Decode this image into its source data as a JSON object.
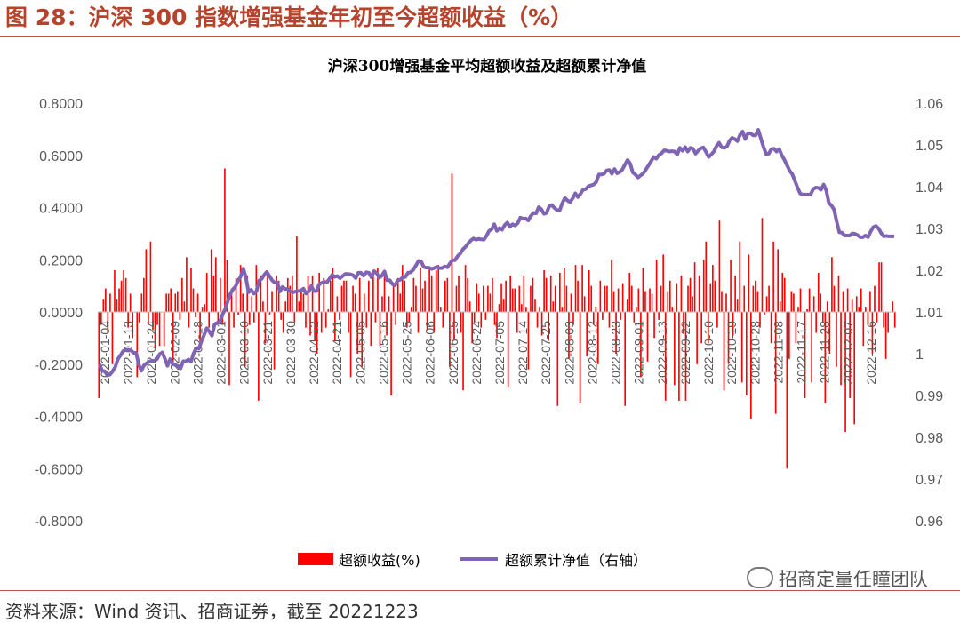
{
  "figure": {
    "title": "图 28：沪深 300 指数增强基金年初至今超额收益（%）",
    "source": "资料来源：Wind 资讯、招商证券，截至 20221223",
    "watermark": "招商定量任瞳团队"
  },
  "colors": {
    "bar": "#ff0000",
    "line": "#7f64b4",
    "rule": "#c0504d",
    "title": "#b8432d"
  },
  "chart_data": {
    "type": "bar",
    "title": "沪深300增强基金平均超额收益及超额累计净值",
    "y_left": {
      "lim": [
        -0.8,
        0.8
      ],
      "ticks": [
        "0.8000",
        "0.6000",
        "0.4000",
        "0.2000",
        "0.0000",
        "-0.2000",
        "-0.4000",
        "-0.6000",
        "-0.8000"
      ]
    },
    "y_right": {
      "lim": [
        0.96,
        1.06
      ],
      "ticks": [
        "1.06",
        "1.05",
        "1.04",
        "1.03",
        "1.02",
        "1.01",
        "1",
        "0.99",
        "0.98",
        "0.97",
        "0.96"
      ]
    },
    "x_tick_labels": [
      "2022-01-04",
      "2022-01-13",
      "2022-01-24",
      "2022-02-09",
      "2022-02-18",
      "2022-03-01",
      "2022-03-10",
      "2022-03-21",
      "2022-03-30",
      "2022-04-12",
      "2022-04-21",
      "2022-05-05",
      "2022-05-16",
      "2022-05-25",
      "2022-06-06",
      "2022-06-15",
      "2022-06-24",
      "2022-07-05",
      "2022-07-14",
      "2022-07-25",
      "2022-08-03",
      "2022-08-12",
      "2022-08-23",
      "2022-09-01",
      "2022-09-13",
      "2022-09-22",
      "2022-10-10",
      "2022-10-19",
      "2022-10-28",
      "2022-11-08",
      "2022-11-17",
      "2022-11-28",
      "2022-12-07",
      "2022-12-16"
    ],
    "legend": [
      {
        "label": "超额收益(%)",
        "kind": "bar"
      },
      {
        "label": "超额累计净值（右轴）",
        "kind": "line"
      }
    ],
    "series": [
      {
        "name": "超额收益(%)",
        "axis": "left",
        "kind": "bar",
        "values": [
          -0.33,
          -0.05,
          0.05,
          0.09,
          -0.08,
          0.07,
          -0.2,
          0.16,
          0.05,
          0.09,
          0.12,
          0.16,
          0.13,
          -0.06,
          0.07,
          -0.1,
          0.0,
          -0.25,
          -0.04,
          0.07,
          0.13,
          0.24,
          -0.05,
          0.27,
          -0.07,
          -0.14,
          -0.05,
          -0.13,
          0.0,
          -0.13,
          0.07,
          0.07,
          0.09,
          -0.2,
          0.07,
          0.08,
          -0.03,
          0.13,
          0.04,
          0.21,
          -0.06,
          0.17,
          0.09,
          -0.02,
          0.07,
          -0.13,
          0.02,
          0.03,
          0.15,
          -0.06,
          0.24,
          0.14,
          0.21,
          -0.04,
          0.13,
          -0.05,
          0.55,
          0.2,
          -0.28,
          0.09,
          -0.06,
          0.13,
          -0.01,
          0.18,
          0.07,
          -0.21,
          0.14,
          -0.05,
          0.06,
          -0.04,
          0.18,
          -0.34,
          0.14,
          0.04,
          -0.12,
          0.15,
          -0.01,
          0.08,
          -0.22,
          0.14,
          0.12,
          -0.03,
          -0.08,
          0.04,
          0.13,
          0.1,
          0.14,
          -0.04,
          0.29,
          0.04,
          0.08,
          0.07,
          -0.06,
          0.14,
          -0.09,
          0.14,
          -0.11,
          -0.16,
          0.15,
          -0.08,
          0.13,
          -0.06,
          0.01,
          0.12,
          0.17,
          -0.11,
          0.06,
          -0.03,
          0.1,
          0.12,
          0.12,
          -0.08,
          -0.25,
          0.1,
          0.07,
          -0.16,
          0.13,
          -0.21,
          0.07,
          -0.06,
          0.12,
          -0.13,
          0.16,
          -0.04,
          0.17,
          -0.13,
          0.06,
          0.14,
          -0.09,
          0.06,
          -0.32,
          0.1,
          -0.05,
          0.13,
          0.07,
          0.18,
          0.12,
          -0.06,
          -0.04,
          0.02,
          0.13,
          0.1,
          -0.08,
          0.17,
          0.09,
          0.12,
          -0.07,
          0.17,
          0.14,
          -0.08,
          0.16,
          0.18,
          0.02,
          -0.06,
          0.12,
          0.13,
          -0.21,
          0.53,
          -0.11,
          0.1,
          0.14,
          -0.08,
          -0.3,
          0.18,
          0.13,
          0.04,
          -0.12,
          -0.04,
          0.11,
          0.07,
          -0.06,
          0.1,
          -0.03,
          0.1,
          0.07,
          0.13,
          -0.05,
          -0.1,
          0.03,
          0.11,
          0.05,
          0.12,
          -0.29,
          0.14,
          0.09,
          0.09,
          -0.08,
          0.1,
          0.03,
          0.14,
          0.02,
          -0.22,
          0.1,
          0.13,
          0.05,
          -0.06,
          0.02,
          -0.09,
          0.16,
          0.13,
          -0.11,
          0.14,
          0.04,
          0.1,
          -0.36,
          0.15,
          0.02,
          0.17,
          0.1,
          -0.18,
          0.07,
          -0.05,
          0.18,
          0.12,
          -0.35,
          0.18,
          0.06,
          -0.17,
          0.16,
          0.1,
          -0.05,
          0.02,
          -0.2,
          0.12,
          -0.03,
          0.1,
          0.1,
          -0.06,
          0.2,
          0.08,
          -0.16,
          0.09,
          -0.03,
          0.11,
          -0.36,
          0.05,
          0.15,
          0.1,
          -0.04,
          0.02,
          0.09,
          -0.25,
          0.17,
          0.08,
          -0.19,
          0.09,
          0.07,
          -0.1,
          0.2,
          -0.03,
          0.1,
          0.22,
          -0.34,
          0.08,
          0.12,
          0.02,
          -0.28,
          0.11,
          -0.34,
          0.14,
          -0.08,
          -0.34,
          0.1,
          0.13,
          0.06,
          0.19,
          -0.2,
          0.14,
          -0.12,
          0.2,
          0.27,
          -0.12,
          0.11,
          0.18,
          0.12,
          -0.06,
          0.35,
          0.08,
          -0.3,
          0.07,
          -0.2,
          0.2,
          -0.09,
          0.14,
          0.05,
          0.27,
          -0.27,
          0.1,
          -0.32,
          0.22,
          -0.41,
          0.1,
          0.12,
          0.08,
          -0.06,
          0.36,
          -0.01,
          0.06,
          0.1,
          -0.12,
          0.27,
          -0.39,
          0.24,
          0.04,
          0.15,
          0.13,
          -0.6,
          -0.18,
          0.08,
          0.07,
          -0.12,
          0.02,
          0.09,
          0.0,
          -0.33,
          0.01,
          0.09,
          -0.27,
          0.06,
          -0.08,
          0.15,
          0.07,
          -0.04,
          -0.35,
          0.04,
          -0.16,
          0.21,
          0.1,
          -0.21,
          0.14,
          -0.28,
          0.08,
          -0.46,
          0.09,
          -0.33,
          0.05,
          -0.43,
          0.06,
          0.02,
          0.09,
          -0.13,
          0.02,
          -0.05,
          0.08,
          -0.16,
          0.1,
          -0.04,
          0.19,
          0.19,
          -0.06,
          -0.18,
          -0.08,
          0.0,
          0.04,
          -0.06
        ]
      },
      {
        "name": "超额累计净值（右轴）",
        "axis": "right",
        "kind": "line",
        "values": [
          0.9975,
          0.9959,
          0.9958,
          0.9948,
          0.995,
          0.9958,
          0.9968,
          0.9987,
          0.9996,
          1.0006,
          1.0009,
          1.0009,
          1.0008,
          1.0002,
          1.0002,
          0.9974,
          0.9959,
          0.9972,
          0.9977,
          0.9981,
          0.9983,
          0.9983,
          0.9987,
          0.9999,
          1.0003,
          0.9988,
          0.9971,
          0.9987,
          0.9975,
          0.9973,
          0.997,
          0.9965,
          0.9982,
          0.9982,
          0.9986,
          0.9981,
          1.0001,
          1.0013,
          1.0012,
          1.003,
          1.0045,
          1.0061,
          1.0053,
          1.0043,
          1.007,
          1.0074,
          1.0076,
          1.0093,
          1.0106,
          1.0125,
          1.0143,
          1.0154,
          1.0161,
          1.0175,
          1.0185,
          1.0204,
          1.0182,
          1.0147,
          1.0153,
          1.0144,
          1.0149,
          1.0175,
          1.0179,
          1.0189,
          1.0196,
          1.0186,
          1.0176,
          1.017,
          1.017,
          1.0149,
          1.016,
          1.0155,
          1.0155,
          1.0149,
          1.0147,
          1.0149,
          1.015,
          1.0151,
          1.0156,
          1.0144,
          1.0149,
          1.0162,
          1.015,
          1.015,
          1.0166,
          1.017,
          1.0172,
          1.0171,
          1.018,
          1.0189,
          1.0184,
          1.0186,
          1.0181,
          1.0186,
          1.0191,
          1.0191,
          1.019,
          1.0188,
          1.0181,
          1.0194,
          1.0194,
          1.0187,
          1.0195,
          1.0194,
          1.0183,
          1.0198,
          1.0193,
          1.0182,
          1.0187,
          1.0197,
          1.0176,
          1.0176,
          1.0167,
          1.0164,
          1.0175,
          1.0177,
          1.0183,
          1.0184,
          1.0194,
          1.0195,
          1.0201,
          1.0211,
          1.0222,
          1.0221,
          1.0208,
          1.0206,
          1.0206,
          1.0203,
          1.0205,
          1.0208,
          1.0205,
          1.0205,
          1.0209,
          1.0207,
          1.0216,
          1.0224,
          1.0224,
          1.0234,
          1.024,
          1.025,
          1.0256,
          1.0264,
          1.0271,
          1.0276,
          1.0273,
          1.0275,
          1.0274,
          1.0273,
          1.0282,
          1.0294,
          1.0298,
          1.031,
          1.0294,
          1.0301,
          1.0297,
          1.0308,
          1.0314,
          1.0304,
          1.031,
          1.0307,
          1.0313,
          1.0326,
          1.0323,
          1.0324,
          1.0319,
          1.033,
          1.0337,
          1.0336,
          1.0351,
          1.0346,
          1.0335,
          1.0337,
          1.0353,
          1.0356,
          1.0349,
          1.0344,
          1.0343,
          1.036,
          1.0373,
          1.0367,
          1.0363,
          1.0372,
          1.0384,
          1.0375,
          1.0383,
          1.0393,
          1.0394,
          1.0401,
          1.0403,
          1.0405,
          1.0411,
          1.0429,
          1.0429,
          1.0431,
          1.0439,
          1.044,
          1.0431,
          1.0442,
          1.0432,
          1.0435,
          1.0441,
          1.0453,
          1.0464,
          1.0455,
          1.0434,
          1.0429,
          1.0422,
          1.0427,
          1.0432,
          1.0441,
          1.0451,
          1.0461,
          1.0471,
          1.0467,
          1.0476,
          1.048,
          1.0487,
          1.0486,
          1.0484,
          1.0485,
          1.0484,
          1.0477,
          1.0493,
          1.0486,
          1.0495,
          1.0484,
          1.0493,
          1.0491,
          1.0479,
          1.0486,
          1.0492,
          1.0494,
          1.0483,
          1.0471,
          1.0477,
          1.0484,
          1.0497,
          1.0505,
          1.0494,
          1.0493,
          1.0496,
          1.051,
          1.0517,
          1.0514,
          1.0509,
          1.0524,
          1.0532,
          1.0514,
          1.0527,
          1.0528,
          1.0523,
          1.0523,
          1.0536,
          1.0515,
          1.0495,
          1.0478,
          1.0479,
          1.049,
          1.0491,
          1.0484,
          1.049,
          1.0475,
          1.0464,
          1.0451,
          1.0438,
          1.043,
          1.0414,
          1.0398,
          1.0384,
          1.0381,
          1.0381,
          1.0381,
          1.0381,
          1.0394,
          1.0398,
          1.0397,
          1.0393,
          1.0405,
          1.0391,
          1.0361,
          1.0355,
          1.0345,
          1.0316,
          1.0291,
          1.029,
          1.0283,
          1.0283,
          1.0283,
          1.0288,
          1.0287,
          1.0284,
          1.0279,
          1.0279,
          1.0283,
          1.0279,
          1.0293,
          1.0303,
          1.0306,
          1.03,
          1.0289,
          1.0281,
          1.0282,
          1.0281,
          1.0281,
          1.0281
        ]
      }
    ],
    "grid": false
  }
}
